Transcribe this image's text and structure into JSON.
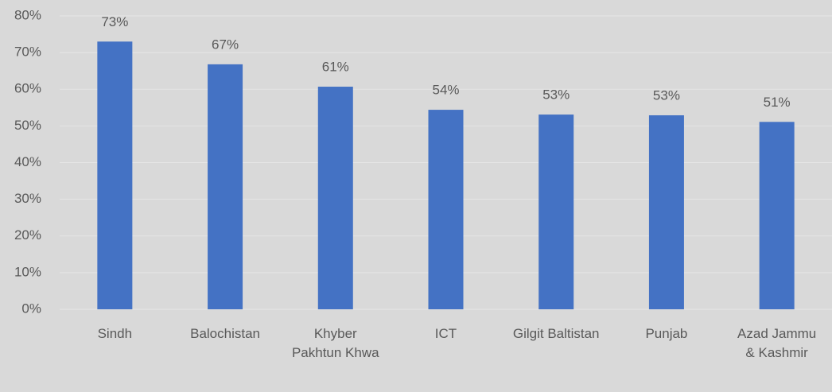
{
  "chart_data": {
    "type": "bar",
    "categories": [
      "Sindh",
      "Balochistan",
      "Khyber Pakhtun Khwa",
      "ICT",
      "Gilgit Baltistan",
      "Punjab",
      "Azad Jammu & Kashmir"
    ],
    "values": [
      73,
      66.8,
      60.7,
      54.4,
      53.1,
      52.9,
      51.1
    ],
    "value_labels": [
      "73%",
      "67%",
      "61%",
      "54%",
      "53%",
      "53%",
      "51%"
    ],
    "color": "#4472c4",
    "ylim": [
      0,
      80
    ],
    "yticks": [
      {
        "value": 0,
        "label": "0%"
      },
      {
        "value": 10,
        "label": "10%"
      },
      {
        "value": 20,
        "label": "20%"
      },
      {
        "value": 30,
        "label": "30%"
      },
      {
        "value": 40,
        "label": "40%"
      },
      {
        "value": 50,
        "label": "50%"
      },
      {
        "value": 60,
        "label": "60%"
      },
      {
        "value": 70,
        "label": "70%"
      },
      {
        "value": 80,
        "label": "80%"
      }
    ],
    "grid": true
  }
}
